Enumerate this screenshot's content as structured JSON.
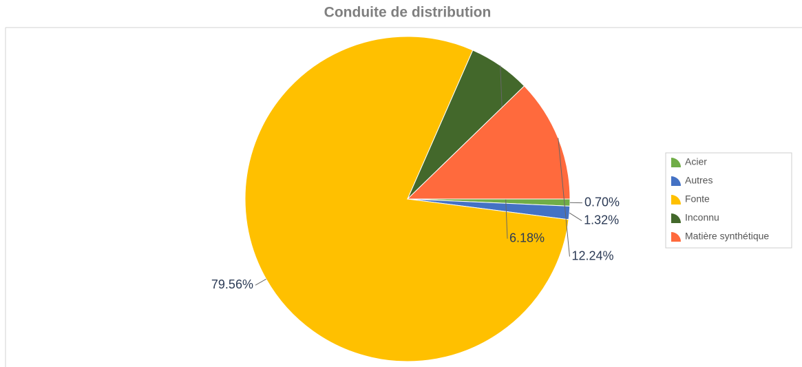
{
  "chart_data": {
    "type": "pie",
    "title": "Conduite de distribution",
    "categories": [
      "Acier",
      "Autres",
      "Fonte",
      "Inconnu",
      "Matière synthétique"
    ],
    "values": [
      0.7,
      1.32,
      79.56,
      6.18,
      12.24
    ],
    "value_labels": [
      "0.70%",
      "1.32%",
      "79.56%",
      "6.18%",
      "12.24%"
    ],
    "colors": [
      "#70ad47",
      "#4472c4",
      "#ffc000",
      "#43682b",
      "#ff6a3d"
    ],
    "legend": "right"
  }
}
